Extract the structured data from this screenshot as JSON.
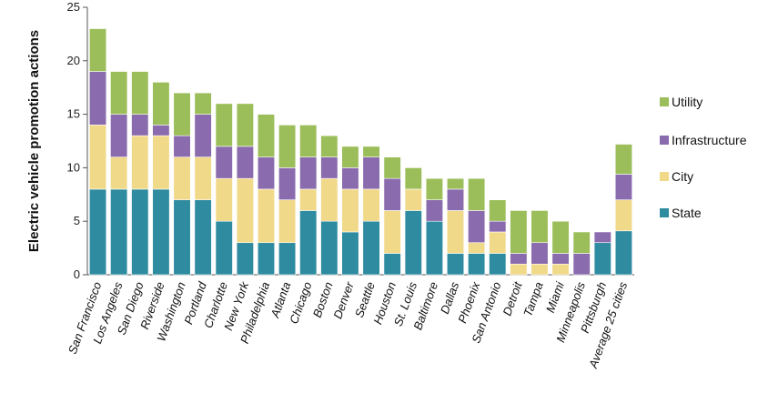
{
  "chart_data": {
    "type": "bar",
    "stacked": true,
    "title": "",
    "xlabel": "",
    "ylabel": "Electric vehicle promotion actions",
    "ylim": [
      0,
      25
    ],
    "yticks": [
      0,
      5,
      10,
      15,
      20,
      25
    ],
    "grid": false,
    "legend_position": "right",
    "categories": [
      "San Francisco",
      "Los Angeles",
      "San Diego",
      "Riverside",
      "Washington",
      "Portland",
      "Charlotte",
      "New York",
      "Philadelphia",
      "Atlanta",
      "Chicago",
      "Boston",
      "Denver",
      "Seattle",
      "Houston",
      "St. Louis",
      "Baltimore",
      "Dallas",
      "Phoenix",
      "San Antonio",
      "Detroit",
      "Tampa",
      "Miami",
      "Minneapolis",
      "Pittsburgh",
      "Average 25 cities"
    ],
    "series": [
      {
        "name": "State",
        "color": "#2E8BA0",
        "values": [
          8,
          8,
          8,
          8,
          7,
          7,
          5,
          3,
          3,
          3,
          6,
          5,
          4,
          5,
          2,
          6,
          5,
          2,
          2,
          2,
          0,
          0,
          0,
          0,
          3,
          4.1
        ]
      },
      {
        "name": "City",
        "color": "#F1D98A",
        "values": [
          6,
          3,
          5,
          5,
          4,
          4,
          4,
          6,
          5,
          4,
          2,
          4,
          4,
          3,
          4,
          2,
          0,
          4,
          1,
          2,
          1,
          1,
          1,
          0,
          0,
          2.9
        ]
      },
      {
        "name": "Infrastructure",
        "color": "#8A6BAD",
        "values": [
          5,
          4,
          2,
          1,
          2,
          4,
          3,
          3,
          3,
          3,
          3,
          2,
          2,
          3,
          3,
          0,
          2,
          2,
          3,
          1,
          1,
          2,
          1,
          2,
          1,
          2.4
        ]
      },
      {
        "name": "Utility",
        "color": "#9BBE5A",
        "values": [
          4,
          4,
          4,
          4,
          4,
          2,
          4,
          4,
          4,
          4,
          3,
          2,
          2,
          1,
          2,
          2,
          2,
          1,
          3,
          2,
          4,
          3,
          3,
          2,
          0,
          2.8
        ]
      }
    ],
    "legend_order": [
      "Utility",
      "Infrastructure",
      "City",
      "State"
    ]
  }
}
